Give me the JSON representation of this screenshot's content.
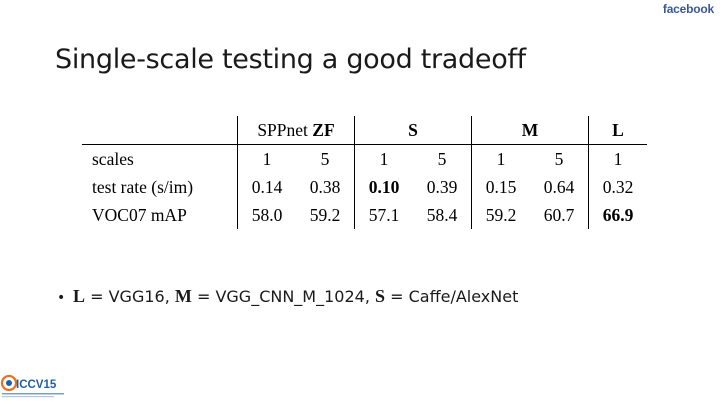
{
  "header": {
    "brand_logo_text": "facebook"
  },
  "slide": {
    "title": "Single-scale testing a good tradeoff"
  },
  "table": {
    "groups": {
      "sppnet_prefix": "SPPnet",
      "zf": "ZF",
      "s": "S",
      "m": "M",
      "l": "L"
    },
    "rows": [
      {
        "label": "scales",
        "cells": [
          "1",
          "5",
          "1",
          "5",
          "1",
          "5",
          "1"
        ]
      },
      {
        "label": "test rate (s/im)",
        "cells": [
          "0.14",
          "0.38",
          "0.10",
          "0.39",
          "0.15",
          "0.64",
          "0.32"
        ]
      },
      {
        "label": "VOC07 mAP",
        "cells": [
          "58.0",
          "59.2",
          "57.1",
          "58.4",
          "59.2",
          "60.7",
          "66.9"
        ]
      }
    ]
  },
  "bullet": {
    "dot": "•",
    "l_key": "L",
    "l_text": " = VGG16, ",
    "m_key": "M",
    "m_text": " = VGG_CNN_M_1024, ",
    "s_key": "S",
    "s_text": " = Caffe/AlexNet"
  },
  "footer": {
    "conference_logo_text": "ICCV15"
  },
  "colors": {
    "facebook_blue": "#3b5998",
    "iccv_orange": "#e8731c",
    "iccv_blue": "#1f5fa8"
  }
}
